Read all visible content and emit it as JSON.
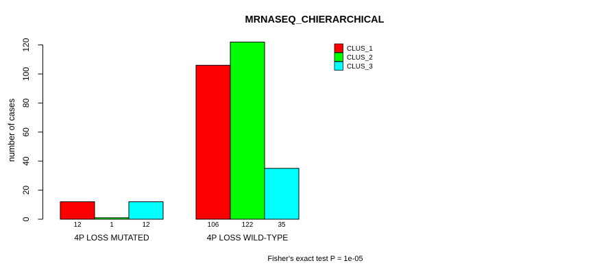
{
  "chart_data": {
    "type": "bar",
    "title": "MRNASEQ_CHIERARCHICAL",
    "ylabel": "number of cases",
    "xlabel": "",
    "footer": "Fisher's exact test P = 1e-05",
    "categories": [
      "4P LOSS MUTATED",
      "4P LOSS WILD-TYPE"
    ],
    "series": [
      {
        "name": "CLUS_1",
        "color": "#FF0000",
        "values": [
          12,
          106
        ]
      },
      {
        "name": "CLUS_2",
        "color": "#00FF00",
        "values": [
          1,
          122
        ]
      },
      {
        "name": "CLUS_3",
        "color": "#00FFFF",
        "values": [
          12,
          35
        ]
      }
    ],
    "yticks": [
      0,
      20,
      40,
      60,
      80,
      100,
      120
    ],
    "ylim": [
      0,
      120
    ],
    "bar_value_labels": [
      "12",
      "1",
      "12",
      "106",
      "122",
      "35"
    ],
    "grid": false,
    "legend_position": "top-right",
    "background_color": "#FFFFFF",
    "text_color": "#000000",
    "bar_border_color": "#000000"
  }
}
